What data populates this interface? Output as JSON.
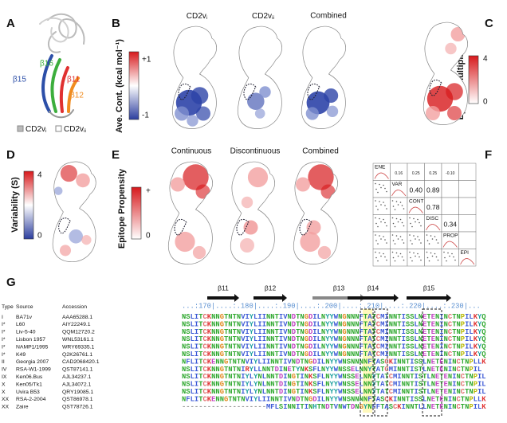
{
  "panels": {
    "a": {
      "letter": "A",
      "strands": [
        "β16",
        "β15",
        "β11",
        "β12"
      ],
      "legend": [
        {
          "text": "CD2v",
          "sub": "i"
        },
        {
          "text": "CD2v",
          "sub": "ii"
        }
      ]
    },
    "b": {
      "letter": "B",
      "columns": [
        {
          "text": "CD2v",
          "sub": "i"
        },
        {
          "text": "CD2v",
          "sub": "ii"
        },
        {
          "text": "Combined"
        }
      ],
      "colorbar": {
        "label": "Ave. Cont. (kcal mol⁻¹)",
        "ticks": [
          "+1",
          "-1"
        ]
      }
    },
    "c": {
      "letter": "C",
      "colorbar": {
        "label": "Epitope Multiplicity",
        "ticks": [
          "4",
          "0"
        ]
      }
    },
    "d": {
      "letter": "D",
      "colorbar": {
        "label": "Variability (S)",
        "ticks": [
          "4",
          "0"
        ]
      }
    },
    "e": {
      "letter": "E",
      "columns": [
        "Continuous",
        "Discontinuous",
        "Combined"
      ],
      "colorbar": {
        "label": "Epitope Propensity",
        "ticks": [
          "+",
          "0"
        ]
      }
    },
    "f": {
      "letter": "F",
      "variables": [
        "ENE",
        "VAR",
        "CONT",
        "DISC",
        "PROP",
        "EPI"
      ],
      "coefficients": [
        [
          "0.16",
          "0.25",
          "0.25",
          "-0.10"
        ],
        [
          "0.40",
          "0.89"
        ],
        [
          "0.78"
        ],
        [
          "0.34"
        ]
      ]
    },
    "g": {
      "letter": "G",
      "header": [
        "Type",
        "Source",
        "Accession"
      ],
      "strands": [
        "β11",
        "β12",
        "β13",
        "β14",
        "β15"
      ],
      "ruler": "...:170|....:.180|....:.190|....:.200|....:.210|....:.220|....:.230|...",
      "rows": [
        [
          "I",
          "BA71v",
          "AAA65288.1",
          "NSLITCKNNGTNTNVIYLIINNTIVNDTNGDILNYYWNGNNNFTATCMINNTISSLNETENINCTNPILKYQ"
        ],
        [
          "I*",
          "L60",
          "AIY22249.1",
          "NSLITCKNNGTNTNVIYLIINNTIVNDTNGDILNYYWNGNNNFTATCMINNTISSLNETENINCTNPILKYQ"
        ],
        [
          "I*",
          "Liv-5-40",
          "QQM12720.2",
          "NSLITCKNNGTNTNVIYLIINNTIVNDTNGDILNYYWNGNNNFTATCMINNTISSLNETENINCTNPILKYQ"
        ],
        [
          "I*",
          "Lisbon 1957",
          "WNL53161.1",
          "NSLITCKNNGTNTNVIYLIINNTIVNDTNGDILNYYWNGNNNFTATCMINNTISSLNETENINCTNPILKYQ"
        ],
        [
          "I*",
          "NAMP1/1995",
          "WRY69335.1",
          "NSLITCKNNGTNTNVIYLIINNTIVNDTNGDILNYYWNGNNNFTATCMINNTISSLNETENINCTNPILKYQ"
        ],
        [
          "I*",
          "K49",
          "Q2K26761.1",
          "NSLITCKNNGTNTNVIYLIINNTIVNDTNGDILNYYWNGNNNFTATCMINNTISSLNETENINCTNPILKYQ"
        ],
        [
          "II",
          "Georgia 2007",
          "CAD2068420.1",
          "NFLITCKENNGTNTNVIYLIINNTIVNDTNGDILNYYWNSNNNNFTASCKINNTISSLNETENINCTNPLLK"
        ],
        [
          "IV",
          "RSA-W1-1999",
          "QST87141.1",
          "NSLITCKNNGTNTNIRYLLNNTDINETYNKSFLNYYWNSSELNNYTATCMINNTISTLNETENINCTNPIL"
        ],
        [
          "IX",
          "Ken06.Bus",
          "AJL34237.1",
          "NSLITCKNNGTNTNIYLYNLNNTDINGTINKSFLNYYWNSSELNNYTATCMINNTISTLNETENINCTNPIL"
        ],
        [
          "X",
          "Ken05/Tk1",
          "AJL34072.1",
          "NSLITCKNNGTNTNIYLYNLNNTDINGTINKSFLNYYWNSSELNNYTATCMINNTISTLNETENINCTNPIL"
        ],
        [
          "X",
          "Uvira B53",
          "QRY19085.1",
          "NSLITCKNNGTNTNIYLYNLNNTDINGTINKSFLNYYWNSSELNNYTATCMINNTISTLNETENINCTNPIL"
        ],
        [
          "XX",
          "RSA-2-2004",
          "QST86978.1",
          "NFLITCKENNGTNTNVIYLIINNTIVNDTNGDILNYYWNSNNNNFTASCKINNTISSLNETENINCTNPLLK"
        ],
        [
          "XX",
          "Zaire",
          "QST78726.1",
          "--------------------MFLSINNITINHTNDTVNWTDNGYNFFTASCKINNTLLNETENINCTNPILK"
        ]
      ]
    }
  }
}
